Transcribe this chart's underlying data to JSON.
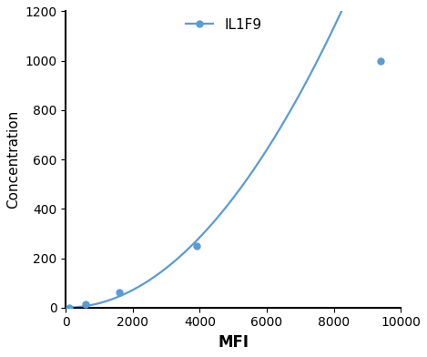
{
  "x_data": [
    100,
    600,
    1600,
    3900,
    9400
  ],
  "y_data": [
    0,
    15,
    62,
    250,
    1000
  ],
  "line_color": "#5B9BD5",
  "marker_color": "#5B9BD5",
  "marker_style": "o",
  "marker_size": 5,
  "line_width": 1.6,
  "label": "IL1F9",
  "xlabel": "MFI",
  "ylabel": "Concentration",
  "xlim": [
    0,
    10000
  ],
  "ylim": [
    0,
    1200
  ],
  "xticks": [
    0,
    2000,
    4000,
    6000,
    8000,
    10000
  ],
  "yticks": [
    0,
    200,
    400,
    600,
    800,
    1000,
    1200
  ],
  "xlabel_fontsize": 12,
  "ylabel_fontsize": 11,
  "tick_fontsize": 10,
  "legend_fontsize": 11,
  "background_color": "#ffffff",
  "spine_color": "#000000",
  "tick_color": "#000000"
}
